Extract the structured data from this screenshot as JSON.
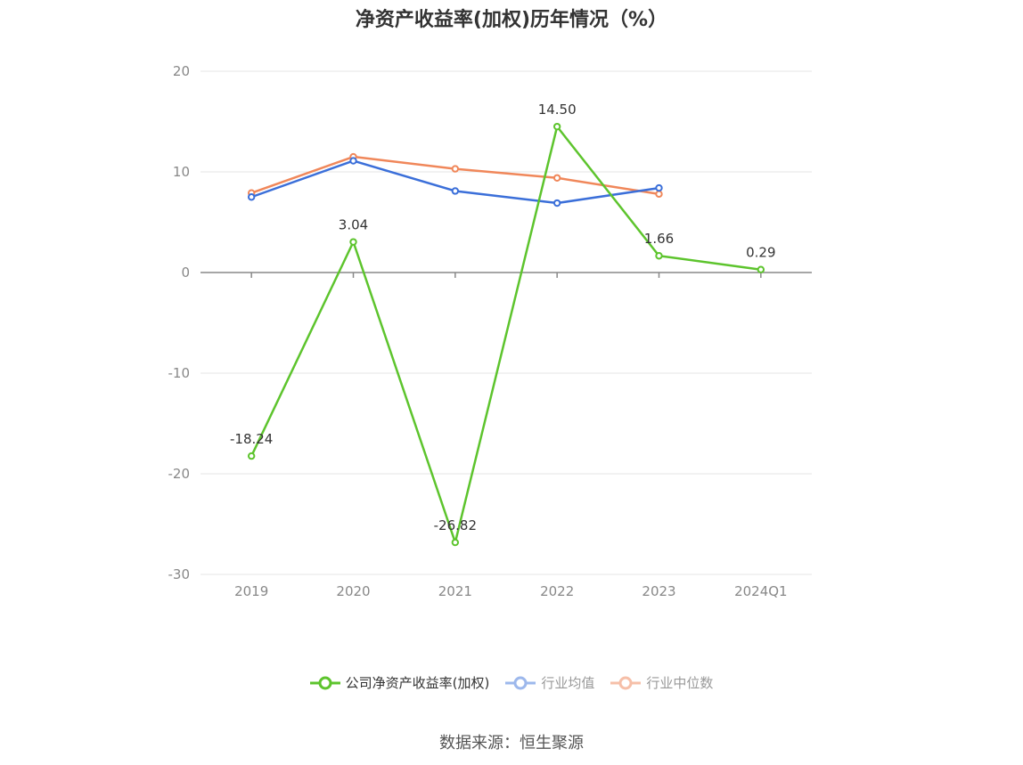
{
  "chart_data": {
    "type": "line",
    "title": "净资产收益率(加权)历年情况（%）",
    "categories": [
      "2019",
      "2020",
      "2021",
      "2022",
      "2023",
      "2024Q1"
    ],
    "ylim": [
      -30,
      20
    ],
    "yticks": [
      20,
      10,
      0,
      -10,
      -20,
      -30
    ],
    "grid": true,
    "legend_position": "bottom",
    "series": [
      {
        "name": "公司净资产收益率(加权)",
        "color": "#5dc42d",
        "values": [
          -18.24,
          3.04,
          -26.82,
          14.5,
          1.66,
          0.29
        ],
        "labels": [
          "-18.24",
          "3.04",
          "-26.82",
          "14.50",
          "1.66",
          "0.29"
        ]
      },
      {
        "name": "行业均值",
        "color": "#3b6fd9",
        "values": [
          7.5,
          11.1,
          8.1,
          6.9,
          8.4,
          null
        ]
      },
      {
        "name": "行业中位数",
        "color": "#f0875a",
        "values": [
          7.9,
          11.5,
          10.3,
          9.4,
          7.8,
          null
        ]
      }
    ]
  },
  "legend": {
    "items": [
      {
        "label": "公司净资产收益率(加权)",
        "color": "#5dc42d",
        "text_color": "#333333",
        "muted": false
      },
      {
        "label": "行业均值",
        "color": "#9db8ec",
        "text_color": "#999999",
        "muted": true
      },
      {
        "label": "行业中位数",
        "color": "#f6bfa8",
        "text_color": "#999999",
        "muted": true
      }
    ]
  },
  "source": "数据来源：恒生聚源"
}
